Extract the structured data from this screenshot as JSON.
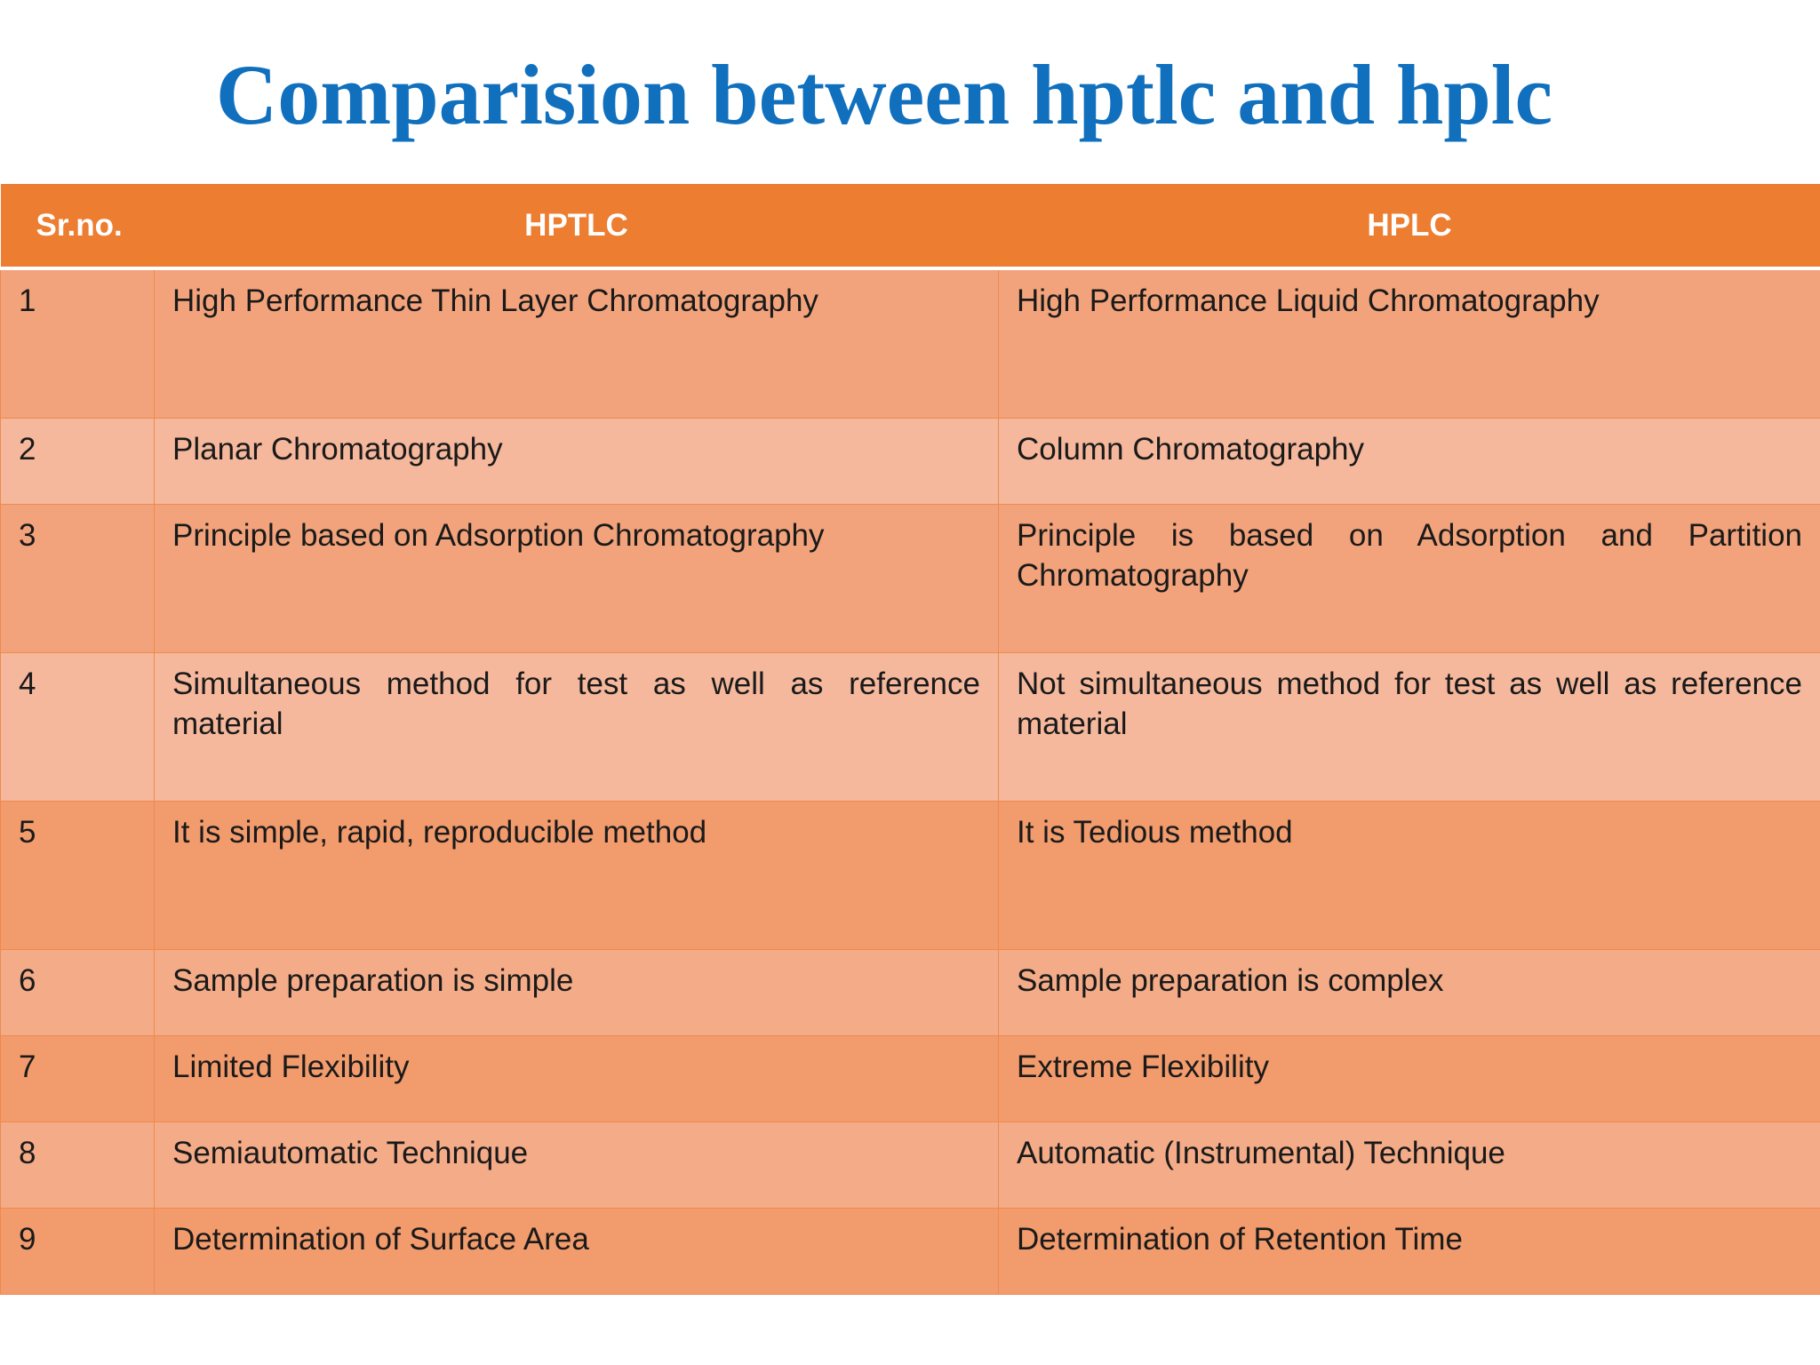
{
  "title": "Comparision between hptlc and hplc",
  "table": {
    "headers": {
      "number": "Sr.no.",
      "left": "HPTLC",
      "right": "HPLC"
    },
    "rows": [
      {
        "no": "1",
        "hptlc": "High Performance Thin Layer Chromatography",
        "hplc": "High Performance Liquid Chromatography"
      },
      {
        "no": "2",
        "hptlc": "Planar Chromatography",
        "hplc": "Column Chromatography"
      },
      {
        "no": "3",
        "hptlc": "Principle based on Adsorption Chromatography",
        "hplc": "Principle is based on Adsorption and Partition Chromatography"
      },
      {
        "no": "4",
        "hptlc": "Simultaneous method for test as well as reference material",
        "hplc": "Not simultaneous method for test as well as reference material"
      },
      {
        "no": "5",
        "hptlc": "It is simple, rapid, reproducible method",
        "hplc": "It is Tedious method"
      },
      {
        "no": "6",
        "hptlc": "Sample preparation is simple",
        "hplc": "Sample preparation is complex"
      },
      {
        "no": "7",
        "hptlc": "Limited Flexibility",
        "hplc": "Extreme Flexibility"
      },
      {
        "no": "8",
        "hptlc": "Semiautomatic Technique",
        "hplc": "Automatic (Instrumental) Technique"
      },
      {
        "no": "9",
        "hptlc": "Determination of Surface Area",
        "hplc": "Determination of Retention Time"
      }
    ]
  },
  "colors": {
    "title": "#1170be",
    "header": "#ed7d31",
    "row_dark": "#f2a37b",
    "row_light": "#f5b89c"
  }
}
